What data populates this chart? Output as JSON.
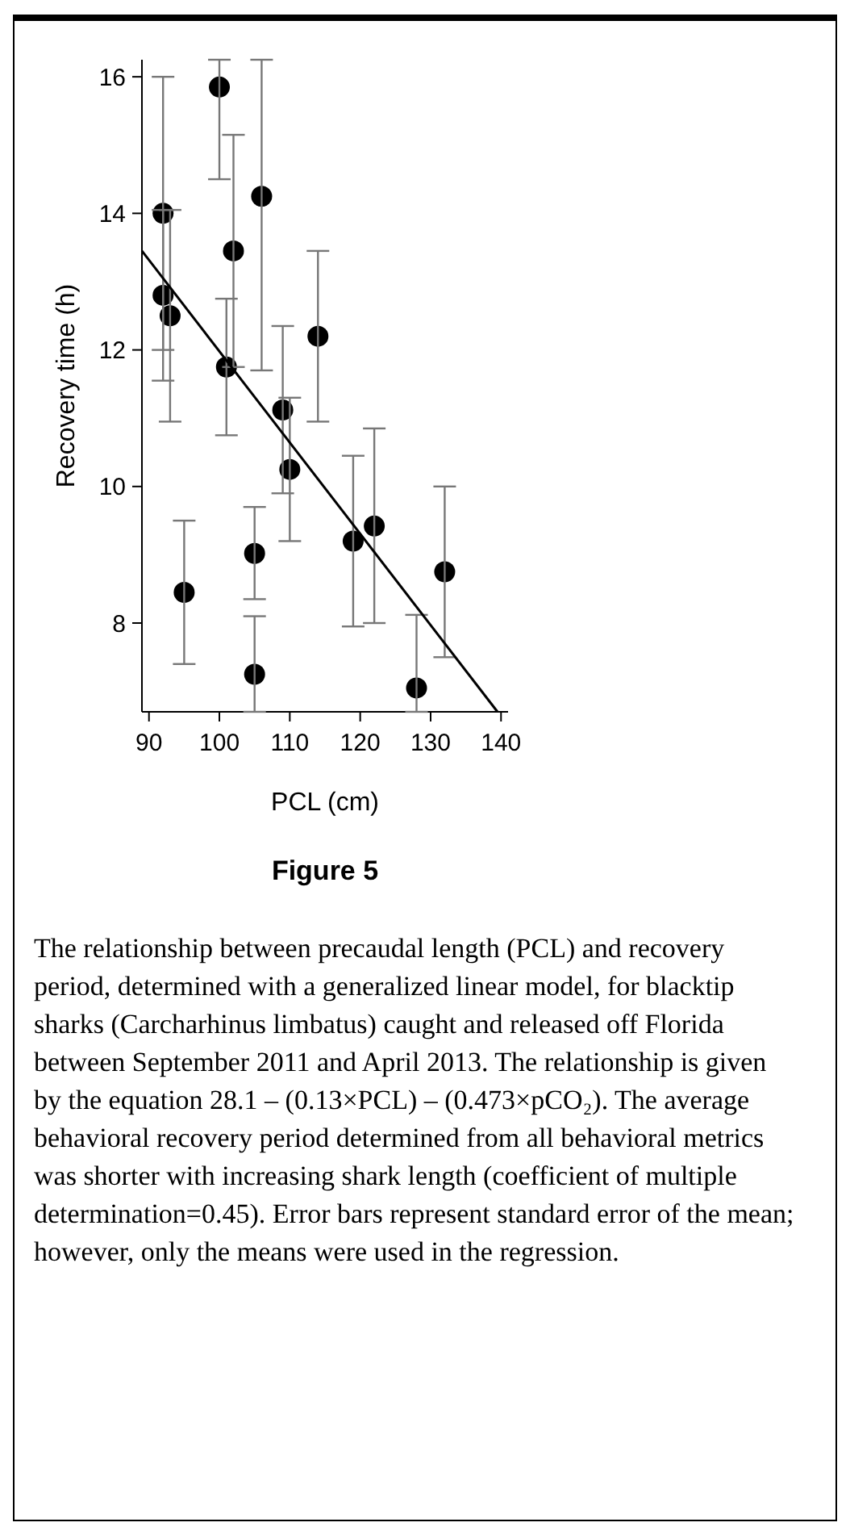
{
  "chart_data": {
    "type": "scatter",
    "title": "Figure 5",
    "xlabel": "PCL (cm)",
    "ylabel": "Recovery time (h)",
    "xlim": [
      89,
      141
    ],
    "xticks": [
      90,
      100,
      110,
      120,
      130,
      140
    ],
    "ylim": [
      6.7,
      16.25
    ],
    "yticks": [
      8,
      10,
      12,
      14,
      16
    ],
    "grid": false,
    "series": [
      {
        "marker": "circle",
        "color": "#000000",
        "x": [
          92,
          92,
          93,
          95,
          100,
          101,
          102,
          105,
          105,
          106,
          109,
          110,
          114,
          119,
          122,
          128,
          132
        ],
        "values": [
          14,
          12.8,
          12.5,
          8.45,
          15.85,
          11.75,
          13.45,
          9.02,
          7.25,
          14.25,
          11.12,
          10.25,
          12.2,
          9.2,
          9.42,
          7.05,
          8.75
        ],
        "errors": [
          [
            12,
            16
          ],
          [
            11.55,
            14.05
          ],
          [
            10.95,
            14.05
          ],
          [
            7.4,
            9.5
          ],
          [
            14.5,
            16.25
          ],
          [
            10.75,
            12.75
          ],
          [
            11.75,
            15.15
          ],
          [
            8.35,
            9.7
          ],
          [
            6.7,
            8.1
          ],
          [
            11.7,
            16.25
          ],
          [
            9.9,
            12.35
          ],
          [
            9.2,
            11.3
          ],
          [
            10.95,
            13.45
          ],
          [
            7.95,
            10.45
          ],
          [
            8,
            10.85
          ],
          [
            6.7,
            8.12
          ],
          [
            7.5,
            10
          ]
        ]
      },
      {
        "type": "line",
        "color": "#000000",
        "x": [
          89,
          139.5
        ],
        "values": [
          13.45,
          6.7
        ]
      }
    ],
    "annotations": [
      "The relationship between precaudal length (PCL) and recovery period, determined with a generalized linear model, for blacktip sharks (Carcharhinus limbatus) caught and released off Florida between September 2011 and April 2013. The relationship is given by the equation 28.1 – (0.13×PCL) – (0.473×pCO₂).  The average behavioral recovery period determined from all behavioral metrics was shorter with increasing shark length (coefficient of multiple determination=0.45). Error bars represent standard error of the mean; however, only the means were used in the regression."
    ]
  }
}
